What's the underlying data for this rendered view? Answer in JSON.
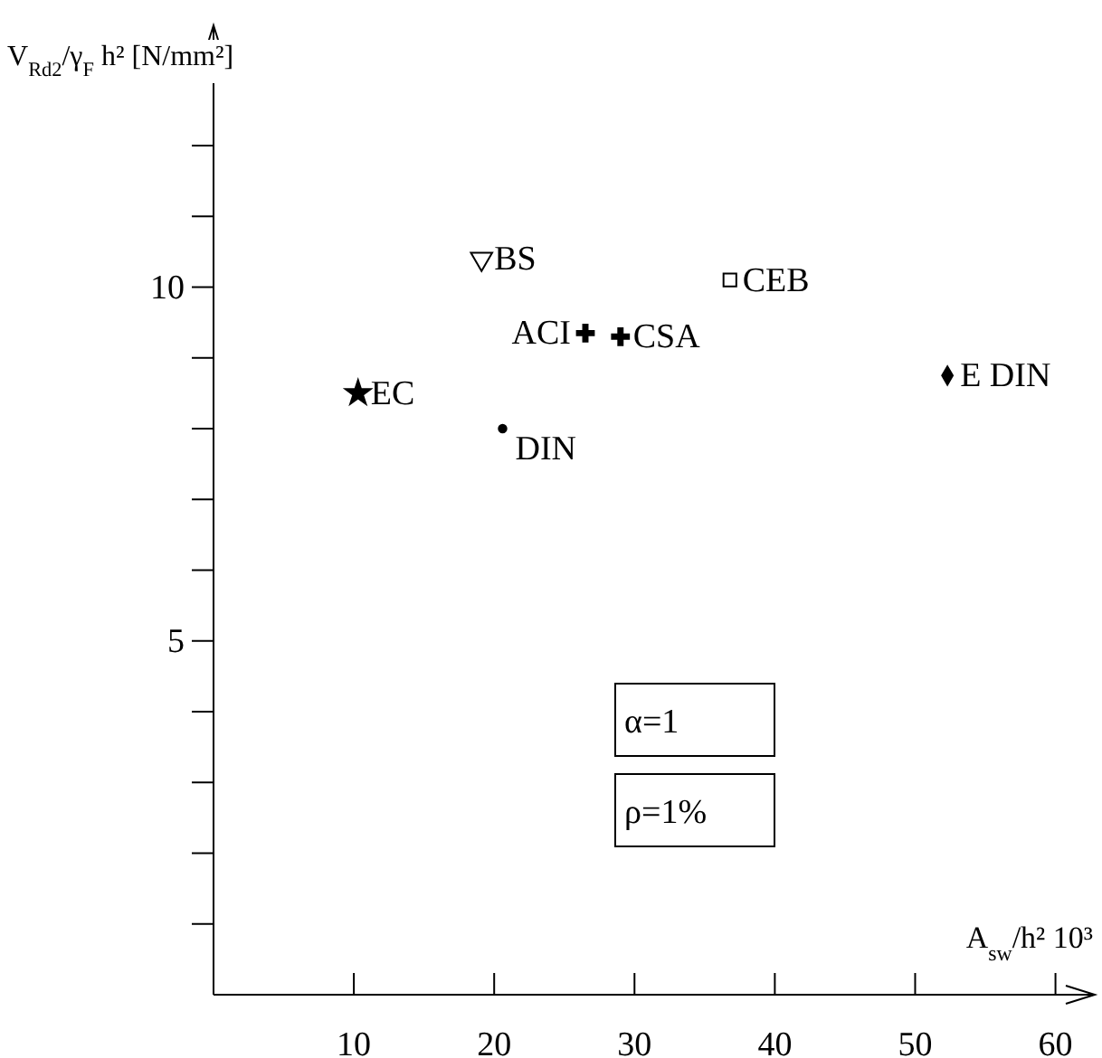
{
  "chart_data": {
    "type": "scatter",
    "xlabel": "A$_{sw}$/h² 10³",
    "ylabel": "V$_{Rd2}$/γ$_{F}$ h² [N/mm²]",
    "xlim": [
      0,
      62.8
    ],
    "ylim": [
      0,
      13.7
    ],
    "xticks": [
      10,
      20,
      30,
      40,
      50,
      60
    ],
    "yticks": [
      {
        "value": 1,
        "label": null
      },
      {
        "value": 2,
        "label": null
      },
      {
        "value": 3,
        "label": null
      },
      {
        "value": 4,
        "label": null
      },
      {
        "value": 5,
        "label": "5"
      },
      {
        "value": 6,
        "label": null
      },
      {
        "value": 7,
        "label": null
      },
      {
        "value": 8,
        "label": null
      },
      {
        "value": 9,
        "label": null
      },
      {
        "value": 10,
        "label": "10"
      },
      {
        "value": 11,
        "label": null
      },
      {
        "value": 12,
        "label": null
      }
    ],
    "grid": false,
    "series": [
      {
        "name": "EC",
        "marker": "star",
        "color": "#000000",
        "x": [
          10.3
        ],
        "values": [
          8.5
        ]
      },
      {
        "name": "BS",
        "marker": "triangle",
        "color": "#000000",
        "x": [
          19.1
        ],
        "values": [
          10.4
        ]
      },
      {
        "name": "ACI",
        "marker": "cross",
        "color": "#000000",
        "x": [
          26.5
        ],
        "values": [
          9.35
        ]
      },
      {
        "name": "CSA",
        "marker": "cross",
        "color": "#000000",
        "x": [
          29
        ],
        "values": [
          9.3
        ]
      },
      {
        "name": "CEB",
        "marker": "square",
        "color": "#000000",
        "x": [
          36.8
        ],
        "values": [
          10.1
        ]
      },
      {
        "name": "DIN",
        "marker": "circle",
        "color": "#000000",
        "x": [
          20.6
        ],
        "values": [
          8.0
        ]
      },
      {
        "name": "E DIN",
        "marker": "diamond",
        "color": "#000000",
        "x": [
          52.3
        ],
        "values": [
          8.75
        ]
      }
    ],
    "annotations": [
      "α=1",
      "ρ=1%"
    ]
  }
}
